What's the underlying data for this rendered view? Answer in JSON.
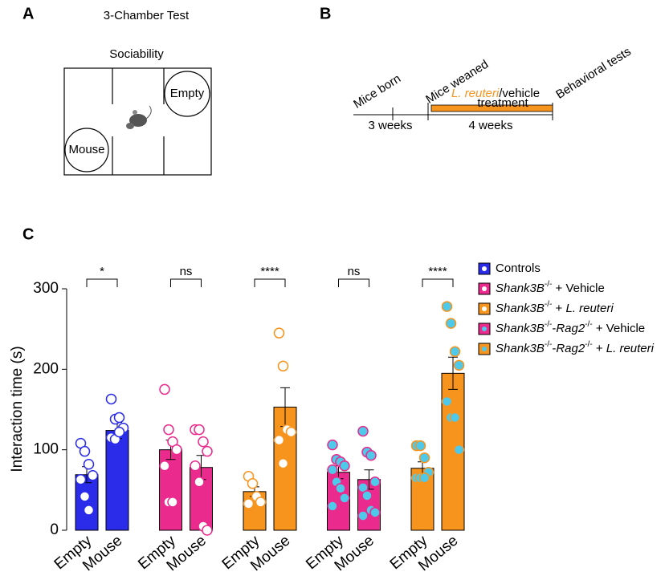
{
  "panel_labels": [
    "A",
    "B",
    "C"
  ],
  "diagram_a": {
    "title": "3-Chamber Test",
    "subtitle": "Sociability",
    "chamber_labels": [
      "Empty",
      "Mouse"
    ]
  },
  "timeline_b": {
    "events": [
      "Mice born",
      "Mice weaned",
      "Behavioral tests"
    ],
    "treatment": "L. reuteri/vehicle",
    "treatment_line2": "treatment",
    "durations": [
      "3 weeks",
      "4 weeks"
    ]
  },
  "chart_data": {
    "type": "bar",
    "ylabel": "Interaction time (s)",
    "ylim": [
      0,
      300
    ],
    "yticks": [
      0,
      100,
      200,
      300
    ],
    "categories": [
      "Empty",
      "Mouse"
    ],
    "significance": [
      "*",
      "ns",
      "****",
      "ns",
      "****"
    ],
    "series": [
      {
        "name": "Controls",
        "color": "#2b2bea",
        "point_fill": "#ffffff",
        "values": [
          69,
          124
        ],
        "errors": [
          10,
          10
        ],
        "points": [
          [
            108,
            98,
            82,
            68,
            63,
            42,
            25
          ],
          [
            163,
            138,
            140,
            127,
            115,
            113,
            122
          ]
        ]
      },
      {
        "name": "Shank3B-/- + Vehicle",
        "color": "#ea2a8c",
        "point_fill": "#ffffff",
        "values": [
          100,
          78
        ],
        "errors": [
          12,
          15
        ],
        "points": [
          [
            175,
            125,
            110,
            100,
            80,
            35,
            35
          ],
          [
            125,
            125,
            110,
            98,
            80,
            60,
            5,
            0
          ]
        ]
      },
      {
        "name": "Shank3B-/- + L. reuteri",
        "color": "#f7941e",
        "point_fill": "#ffffff",
        "values": [
          48,
          153
        ],
        "errors": [
          6,
          24
        ],
        "points": [
          [
            67,
            58,
            42,
            35,
            33
          ],
          [
            245,
            204,
            125,
            122,
            112,
            83
          ]
        ]
      },
      {
        "name": "Shank3B-/--Rag2-/- + Vehicle",
        "color": "#ea2a8c",
        "point_fill": "#4fc9ea",
        "values": [
          72,
          63
        ],
        "errors": [
          8,
          12
        ],
        "points": [
          [
            106,
            88,
            85,
            80,
            75,
            60,
            52,
            40,
            30
          ],
          [
            123,
            97,
            93,
            60,
            53,
            43,
            25,
            22,
            18
          ]
        ]
      },
      {
        "name": "Shank3B-/--Rag2-/- + L. reuteri",
        "color": "#f7941e",
        "point_fill": "#4fc9ea",
        "values": [
          77,
          195
        ],
        "errors": [
          8,
          20
        ],
        "points": [
          [
            105,
            105,
            90,
            72,
            65,
            65,
            65
          ],
          [
            278,
            257,
            222,
            205,
            160,
            140,
            140,
            100
          ]
        ]
      }
    ]
  }
}
